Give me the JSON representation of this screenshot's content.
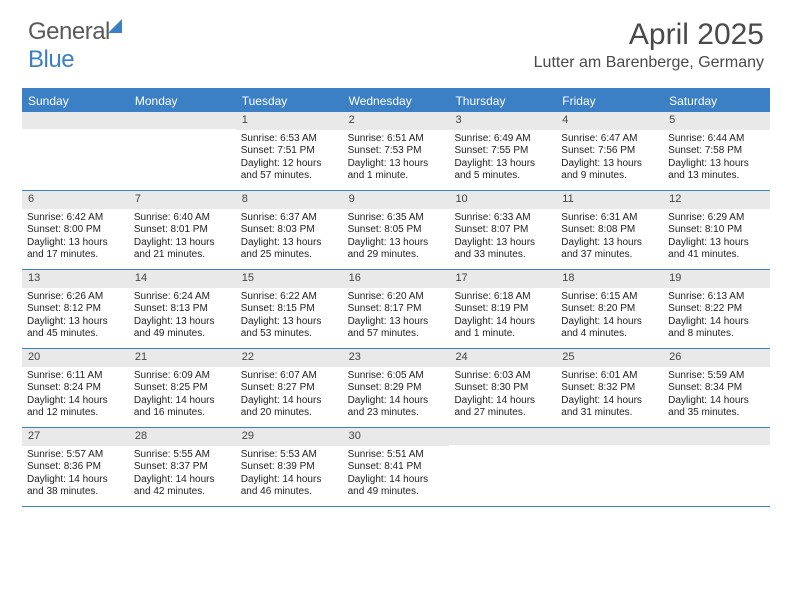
{
  "brand": {
    "part1": "General",
    "part2": "Blue"
  },
  "title": "April 2025",
  "location": "Lutter am Barenberge, Germany",
  "colors": {
    "accent": "#3b7fc4",
    "dow_bg": "#3b7fc4",
    "dow_text": "#ffffff",
    "daynum_bg": "#e9e9e9",
    "text": "#222222",
    "header_text": "#4a4a4a"
  },
  "days_of_week": [
    "Sunday",
    "Monday",
    "Tuesday",
    "Wednesday",
    "Thursday",
    "Friday",
    "Saturday"
  ],
  "weeks": [
    [
      {
        "n": "",
        "sunrise": "",
        "sunset": "",
        "daylight": ""
      },
      {
        "n": "",
        "sunrise": "",
        "sunset": "",
        "daylight": ""
      },
      {
        "n": "1",
        "sunrise": "Sunrise: 6:53 AM",
        "sunset": "Sunset: 7:51 PM",
        "daylight": "Daylight: 12 hours and 57 minutes."
      },
      {
        "n": "2",
        "sunrise": "Sunrise: 6:51 AM",
        "sunset": "Sunset: 7:53 PM",
        "daylight": "Daylight: 13 hours and 1 minute."
      },
      {
        "n": "3",
        "sunrise": "Sunrise: 6:49 AM",
        "sunset": "Sunset: 7:55 PM",
        "daylight": "Daylight: 13 hours and 5 minutes."
      },
      {
        "n": "4",
        "sunrise": "Sunrise: 6:47 AM",
        "sunset": "Sunset: 7:56 PM",
        "daylight": "Daylight: 13 hours and 9 minutes."
      },
      {
        "n": "5",
        "sunrise": "Sunrise: 6:44 AM",
        "sunset": "Sunset: 7:58 PM",
        "daylight": "Daylight: 13 hours and 13 minutes."
      }
    ],
    [
      {
        "n": "6",
        "sunrise": "Sunrise: 6:42 AM",
        "sunset": "Sunset: 8:00 PM",
        "daylight": "Daylight: 13 hours and 17 minutes."
      },
      {
        "n": "7",
        "sunrise": "Sunrise: 6:40 AM",
        "sunset": "Sunset: 8:01 PM",
        "daylight": "Daylight: 13 hours and 21 minutes."
      },
      {
        "n": "8",
        "sunrise": "Sunrise: 6:37 AM",
        "sunset": "Sunset: 8:03 PM",
        "daylight": "Daylight: 13 hours and 25 minutes."
      },
      {
        "n": "9",
        "sunrise": "Sunrise: 6:35 AM",
        "sunset": "Sunset: 8:05 PM",
        "daylight": "Daylight: 13 hours and 29 minutes."
      },
      {
        "n": "10",
        "sunrise": "Sunrise: 6:33 AM",
        "sunset": "Sunset: 8:07 PM",
        "daylight": "Daylight: 13 hours and 33 minutes."
      },
      {
        "n": "11",
        "sunrise": "Sunrise: 6:31 AM",
        "sunset": "Sunset: 8:08 PM",
        "daylight": "Daylight: 13 hours and 37 minutes."
      },
      {
        "n": "12",
        "sunrise": "Sunrise: 6:29 AM",
        "sunset": "Sunset: 8:10 PM",
        "daylight": "Daylight: 13 hours and 41 minutes."
      }
    ],
    [
      {
        "n": "13",
        "sunrise": "Sunrise: 6:26 AM",
        "sunset": "Sunset: 8:12 PM",
        "daylight": "Daylight: 13 hours and 45 minutes."
      },
      {
        "n": "14",
        "sunrise": "Sunrise: 6:24 AM",
        "sunset": "Sunset: 8:13 PM",
        "daylight": "Daylight: 13 hours and 49 minutes."
      },
      {
        "n": "15",
        "sunrise": "Sunrise: 6:22 AM",
        "sunset": "Sunset: 8:15 PM",
        "daylight": "Daylight: 13 hours and 53 minutes."
      },
      {
        "n": "16",
        "sunrise": "Sunrise: 6:20 AM",
        "sunset": "Sunset: 8:17 PM",
        "daylight": "Daylight: 13 hours and 57 minutes."
      },
      {
        "n": "17",
        "sunrise": "Sunrise: 6:18 AM",
        "sunset": "Sunset: 8:19 PM",
        "daylight": "Daylight: 14 hours and 1 minute."
      },
      {
        "n": "18",
        "sunrise": "Sunrise: 6:15 AM",
        "sunset": "Sunset: 8:20 PM",
        "daylight": "Daylight: 14 hours and 4 minutes."
      },
      {
        "n": "19",
        "sunrise": "Sunrise: 6:13 AM",
        "sunset": "Sunset: 8:22 PM",
        "daylight": "Daylight: 14 hours and 8 minutes."
      }
    ],
    [
      {
        "n": "20",
        "sunrise": "Sunrise: 6:11 AM",
        "sunset": "Sunset: 8:24 PM",
        "daylight": "Daylight: 14 hours and 12 minutes."
      },
      {
        "n": "21",
        "sunrise": "Sunrise: 6:09 AM",
        "sunset": "Sunset: 8:25 PM",
        "daylight": "Daylight: 14 hours and 16 minutes."
      },
      {
        "n": "22",
        "sunrise": "Sunrise: 6:07 AM",
        "sunset": "Sunset: 8:27 PM",
        "daylight": "Daylight: 14 hours and 20 minutes."
      },
      {
        "n": "23",
        "sunrise": "Sunrise: 6:05 AM",
        "sunset": "Sunset: 8:29 PM",
        "daylight": "Daylight: 14 hours and 23 minutes."
      },
      {
        "n": "24",
        "sunrise": "Sunrise: 6:03 AM",
        "sunset": "Sunset: 8:30 PM",
        "daylight": "Daylight: 14 hours and 27 minutes."
      },
      {
        "n": "25",
        "sunrise": "Sunrise: 6:01 AM",
        "sunset": "Sunset: 8:32 PM",
        "daylight": "Daylight: 14 hours and 31 minutes."
      },
      {
        "n": "26",
        "sunrise": "Sunrise: 5:59 AM",
        "sunset": "Sunset: 8:34 PM",
        "daylight": "Daylight: 14 hours and 35 minutes."
      }
    ],
    [
      {
        "n": "27",
        "sunrise": "Sunrise: 5:57 AM",
        "sunset": "Sunset: 8:36 PM",
        "daylight": "Daylight: 14 hours and 38 minutes."
      },
      {
        "n": "28",
        "sunrise": "Sunrise: 5:55 AM",
        "sunset": "Sunset: 8:37 PM",
        "daylight": "Daylight: 14 hours and 42 minutes."
      },
      {
        "n": "29",
        "sunrise": "Sunrise: 5:53 AM",
        "sunset": "Sunset: 8:39 PM",
        "daylight": "Daylight: 14 hours and 46 minutes."
      },
      {
        "n": "30",
        "sunrise": "Sunrise: 5:51 AM",
        "sunset": "Sunset: 8:41 PM",
        "daylight": "Daylight: 14 hours and 49 minutes."
      },
      {
        "n": "",
        "sunrise": "",
        "sunset": "",
        "daylight": ""
      },
      {
        "n": "",
        "sunrise": "",
        "sunset": "",
        "daylight": ""
      },
      {
        "n": "",
        "sunrise": "",
        "sunset": "",
        "daylight": ""
      }
    ]
  ]
}
